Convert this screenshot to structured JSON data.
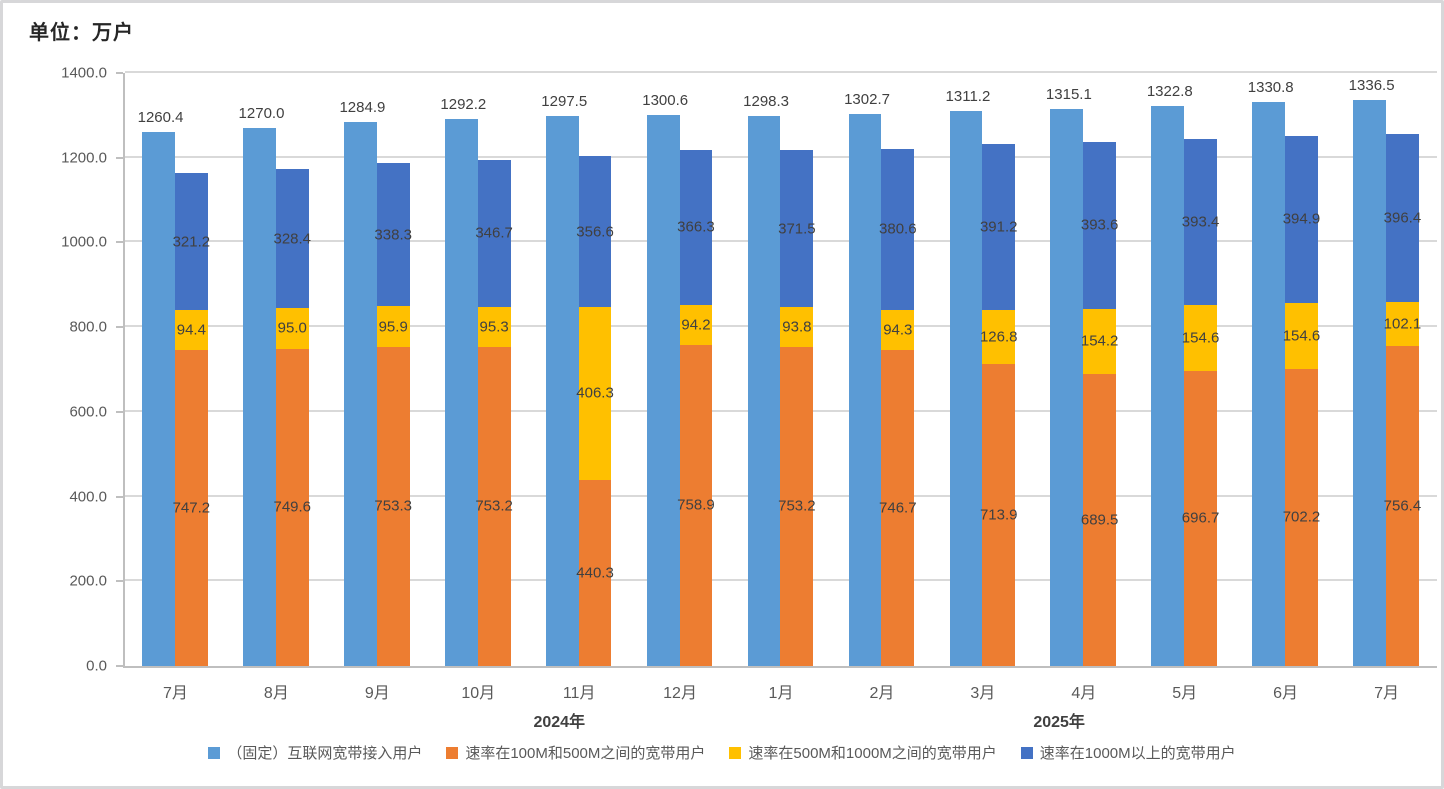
{
  "title": "单位：万户",
  "chart_data": {
    "type": "bar",
    "title": "单位：万户",
    "categories": [
      "7月",
      "8月",
      "9月",
      "10月",
      "11月",
      "12月",
      "1月",
      "2月",
      "3月",
      "4月",
      "5月",
      "6月",
      "7月"
    ],
    "category_groups": [
      {
        "label": "2024年",
        "from": 0,
        "to": 5
      },
      {
        "label": "2025年",
        "from": 6,
        "to": 12
      }
    ],
    "series": [
      {
        "name": "（固定）互联网宽带接入用户",
        "color": "#5b9bd5",
        "role": "grouped-total",
        "values": [
          1260.4,
          1270.0,
          1284.9,
          1292.2,
          1297.5,
          1300.6,
          1298.3,
          1302.7,
          1311.2,
          1315.1,
          1322.8,
          1330.8,
          1336.5
        ]
      },
      {
        "name": "速率在100M和500M之间的宽带用户",
        "color": "#ed7d31",
        "role": "stacked",
        "values": [
          747.2,
          749.6,
          753.3,
          753.2,
          440.3,
          758.9,
          753.2,
          746.7,
          713.9,
          689.5,
          696.7,
          702.2,
          756.4
        ]
      },
      {
        "name": "速率在500M和1000M之间的宽带用户",
        "color": "#ffc000",
        "role": "stacked",
        "values": [
          94.4,
          95.0,
          95.9,
          95.3,
          406.3,
          94.2,
          93.8,
          94.3,
          126.8,
          154.2,
          154.6,
          154.6,
          102.1
        ]
      },
      {
        "name": "速率在1000M以上的宽带用户",
        "color": "#4472c4",
        "role": "stacked",
        "values": [
          321.2,
          328.4,
          338.3,
          346.7,
          356.6,
          366.3,
          371.5,
          380.6,
          391.2,
          393.6,
          393.4,
          394.9,
          396.4
        ]
      }
    ],
    "ylim": [
      0,
      1400
    ],
    "ytick_step": 200,
    "ytick_labels": [
      "0.0",
      "200.0",
      "400.0",
      "600.0",
      "800.0",
      "1000.0",
      "1200.0",
      "1400.0"
    ],
    "value_label_decimals": 1,
    "grid": true,
    "legend_position": "bottom"
  },
  "colors": {
    "series_total_blue": "#5b9bd5",
    "series_orange": "#ed7d31",
    "series_yellow": "#ffc000",
    "series_dark_blue": "#4472c4",
    "grid_line": "#d9d9d9",
    "axis_line": "#bfbfbf",
    "axis_text": "#595959",
    "data_label_text": "#404040",
    "title_text": "#262626"
  }
}
